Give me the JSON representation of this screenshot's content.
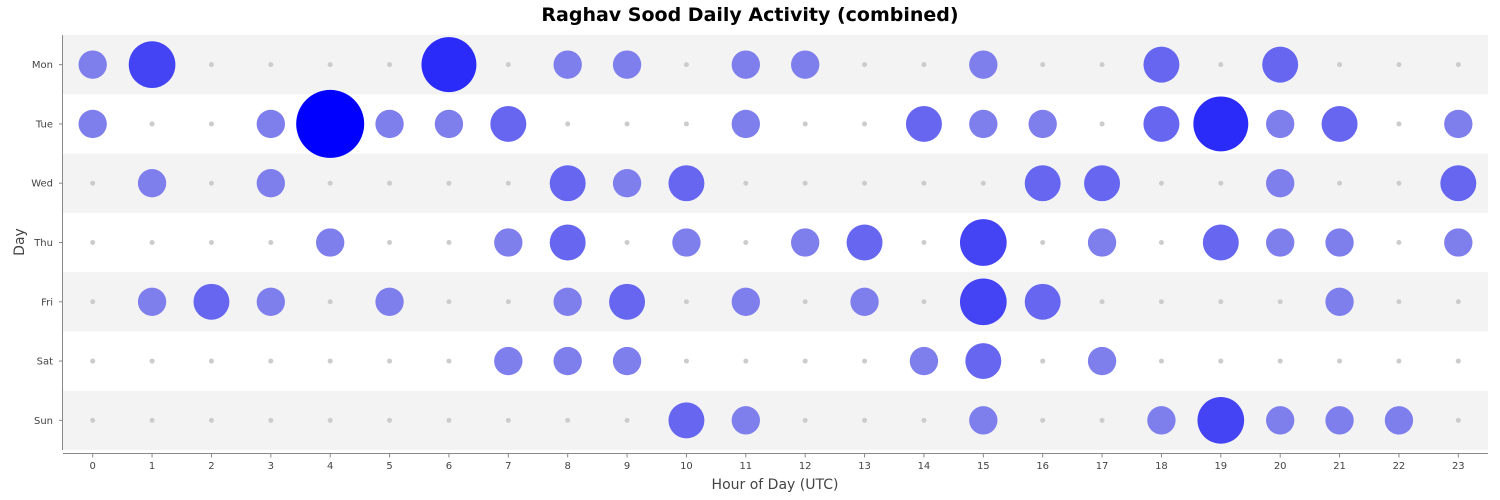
{
  "chart_data": {
    "type": "scatter",
    "title": "Raghav Sood Daily Activity (combined)",
    "xlabel": "Hour of Day (UTC)",
    "ylabel": "Day",
    "x": [
      0,
      1,
      2,
      3,
      4,
      5,
      6,
      7,
      8,
      9,
      10,
      11,
      12,
      13,
      14,
      15,
      16,
      17,
      18,
      19,
      20,
      21,
      22,
      23
    ],
    "categories": [
      "Mon",
      "Tue",
      "Wed",
      "Thu",
      "Fri",
      "Sat",
      "Sun"
    ],
    "xlim": [
      -0.5,
      23.5
    ],
    "grid": false,
    "legend": "none",
    "max_value": 10,
    "matrix": [
      [
        1,
        4,
        0,
        0,
        0,
        0,
        6,
        0,
        1,
        1,
        0,
        1,
        1,
        0,
        0,
        1,
        0,
        0,
        2,
        0,
        2,
        0,
        0,
        0
      ],
      [
        1,
        0,
        0,
        1,
        10,
        1,
        1,
        2,
        0,
        0,
        0,
        1,
        0,
        0,
        2,
        1,
        1,
        0,
        2,
        6,
        1,
        2,
        0,
        1
      ],
      [
        0,
        1,
        0,
        1,
        0,
        0,
        0,
        0,
        2,
        1,
        2,
        0,
        0,
        0,
        0,
        0,
        2,
        2,
        0,
        0,
        1,
        0,
        0,
        2
      ],
      [
        0,
        0,
        0,
        0,
        1,
        0,
        0,
        1,
        2,
        0,
        1,
        0,
        1,
        2,
        0,
        4,
        0,
        1,
        0,
        2,
        1,
        1,
        0,
        1
      ],
      [
        0,
        1,
        2,
        1,
        0,
        1,
        0,
        0,
        1,
        2,
        0,
        1,
        0,
        1,
        0,
        4,
        2,
        0,
        0,
        0,
        0,
        1,
        0,
        0
      ],
      [
        0,
        0,
        0,
        0,
        0,
        0,
        0,
        1,
        1,
        1,
        0,
        0,
        0,
        0,
        1,
        2,
        0,
        1,
        0,
        0,
        0,
        0,
        0,
        0
      ],
      [
        0,
        0,
        0,
        0,
        0,
        0,
        0,
        0,
        0,
        0,
        2,
        1,
        0,
        0,
        0,
        1,
        0,
        0,
        1,
        4,
        1,
        1,
        1,
        0
      ]
    ],
    "colors": {
      "background": "#ffffff",
      "band": "#f3f3f3",
      "zero_dot": "#cccccc",
      "bubble_light": "#b9b9e4",
      "bubble_max": "#0000ff",
      "axis": "#888888"
    }
  }
}
